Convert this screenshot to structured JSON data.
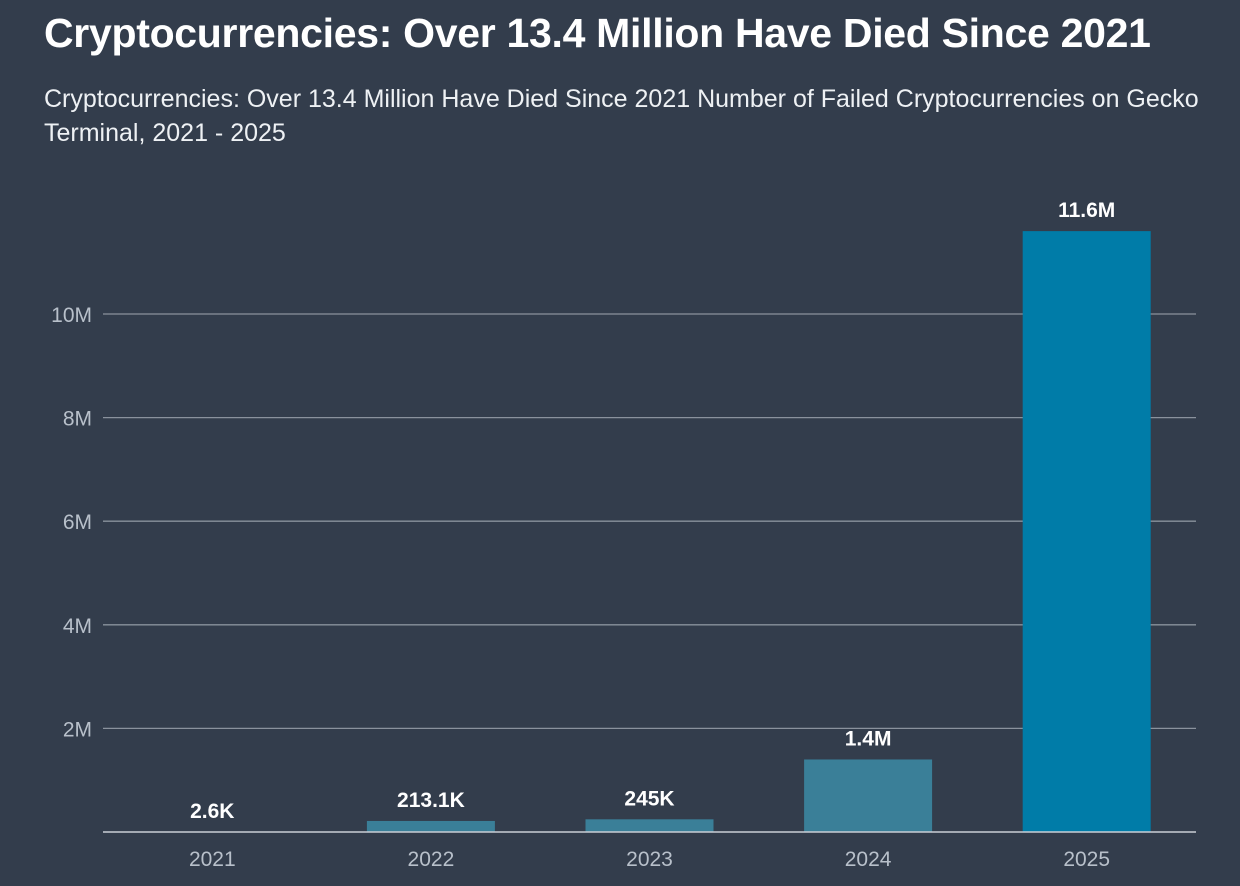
{
  "chart_data": {
    "type": "bar",
    "title": "Cryptocurrencies: Over 13.4 Million Have Died Since 2021",
    "subtitle": "Cryptocurrencies: Over 13.4 Million Have Died Since 2021 Number of Failed Cryptocurrencies on Gecko Terminal, 2021 - 2025",
    "categories": [
      "2021",
      "2022",
      "2023",
      "2024",
      "2025"
    ],
    "values": [
      2600,
      213100,
      245000,
      1400000,
      11600000
    ],
    "data_labels": [
      "2.6K",
      "213.1K",
      "245K",
      "1.4M",
      "11.6M"
    ],
    "bar_colors": [
      "#3a7f98",
      "#3a7f98",
      "#3a7f98",
      "#3a7f98",
      "#007ca8"
    ],
    "y_ticks": [
      {
        "value": 2000000,
        "label": "2M"
      },
      {
        "value": 4000000,
        "label": "4M"
      },
      {
        "value": 6000000,
        "label": "6M"
      },
      {
        "value": 8000000,
        "label": "8M"
      },
      {
        "value": 10000000,
        "label": "10M"
      }
    ],
    "ylim": [
      0,
      10000000
    ],
    "grid": true,
    "xlabel": "",
    "ylabel": ""
  }
}
